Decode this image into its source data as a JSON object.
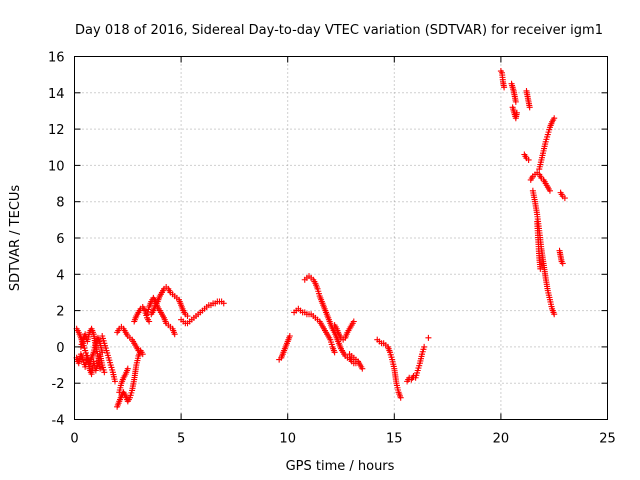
{
  "chart_data": {
    "type": "scatter",
    "title": "Day 018 of 2016, Sidereal Day-to-day VTEC variation (SDTVAR) for receiver igm1",
    "xlabel": "GPS time / hours",
    "ylabel": "SDTVAR / TECUs",
    "xlim": [
      0,
      25
    ],
    "ylim": [
      -4,
      16
    ],
    "xticks": [
      "0",
      "5",
      "10",
      "15",
      "20",
      "25"
    ],
    "yticks": [
      "-4",
      "-2",
      "0",
      "2",
      "4",
      "6",
      "8",
      "10",
      "12",
      "14",
      "16"
    ],
    "grid": true,
    "marker": "plus",
    "color": "#ff0000",
    "arcs": [
      [
        [
          0.1,
          1.0
        ],
        [
          0.2,
          0.8
        ],
        [
          0.3,
          0.5
        ],
        [
          0.4,
          0.2
        ],
        [
          0.5,
          -0.2
        ],
        [
          0.6,
          -0.6
        ],
        [
          0.7,
          -0.9
        ],
        [
          0.8,
          -0.6
        ],
        [
          0.9,
          -0.3
        ],
        [
          1.0,
          0.2
        ],
        [
          1.1,
          0.5
        ],
        [
          1.2,
          0.2
        ],
        [
          1.3,
          -0.3
        ]
      ],
      [
        [
          0.1,
          -0.6
        ],
        [
          0.2,
          -0.9
        ],
        [
          0.3,
          -0.4
        ],
        [
          0.4,
          -0.7
        ],
        [
          0.5,
          -1.1
        ],
        [
          0.6,
          -0.5
        ],
        [
          0.7,
          -1.2
        ],
        [
          0.8,
          -1.5
        ],
        [
          0.9,
          -0.8
        ],
        [
          1.0,
          -1.3
        ],
        [
          1.1,
          -0.9
        ],
        [
          1.2,
          -0.4
        ],
        [
          1.3,
          -1.0
        ],
        [
          1.4,
          -1.4
        ]
      ],
      [
        [
          0.3,
          0.0
        ],
        [
          0.4,
          0.4
        ],
        [
          0.5,
          0.7
        ],
        [
          0.6,
          0.3
        ],
        [
          0.7,
          0.8
        ],
        [
          0.8,
          1.0
        ],
        [
          0.9,
          0.7
        ],
        [
          1.0,
          0.0
        ],
        [
          1.1,
          -0.5
        ],
        [
          1.2,
          -1.2
        ]
      ],
      [
        [
          1.3,
          0.6
        ],
        [
          1.4,
          0.2
        ],
        [
          1.5,
          -0.2
        ],
        [
          1.6,
          -0.6
        ],
        [
          1.7,
          -1.0
        ],
        [
          1.8,
          -1.4
        ],
        [
          1.9,
          -1.9
        ]
      ],
      [
        [
          2.0,
          -3.3
        ],
        [
          2.1,
          -3.0
        ],
        [
          2.2,
          -2.7
        ],
        [
          2.3,
          -2.5
        ],
        [
          2.4,
          -2.7
        ],
        [
          2.5,
          -3.0
        ],
        [
          2.6,
          -2.8
        ],
        [
          2.7,
          -2.4
        ],
        [
          2.8,
          -1.8
        ],
        [
          2.9,
          -1.0
        ],
        [
          3.0,
          -0.5
        ],
        [
          3.1,
          -0.2
        ],
        [
          3.2,
          -0.4
        ]
      ],
      [
        [
          2.1,
          -2.5
        ],
        [
          2.2,
          -2.0
        ],
        [
          2.3,
          -1.7
        ],
        [
          2.4,
          -1.5
        ],
        [
          2.5,
          -1.2
        ]
      ],
      [
        [
          2.0,
          0.8
        ],
        [
          2.1,
          1.0
        ],
        [
          2.2,
          1.1
        ],
        [
          2.3,
          1.0
        ],
        [
          2.4,
          0.8
        ],
        [
          2.5,
          0.6
        ],
        [
          2.6,
          0.5
        ],
        [
          2.7,
          0.4
        ],
        [
          2.8,
          0.2
        ],
        [
          2.9,
          0.0
        ],
        [
          3.0,
          -0.2
        ]
      ],
      [
        [
          2.8,
          1.4
        ],
        [
          2.9,
          1.7
        ],
        [
          3.0,
          1.9
        ],
        [
          3.1,
          2.1
        ],
        [
          3.2,
          2.2
        ],
        [
          3.3,
          2.0
        ],
        [
          3.4,
          1.6
        ],
        [
          3.5,
          1.4
        ]
      ],
      [
        [
          3.4,
          1.8
        ],
        [
          3.5,
          2.2
        ],
        [
          3.6,
          2.5
        ],
        [
          3.7,
          2.7
        ],
        [
          3.8,
          2.5
        ],
        [
          3.9,
          2.2
        ],
        [
          4.0,
          2.0
        ],
        [
          4.1,
          1.8
        ],
        [
          4.2,
          1.6
        ],
        [
          4.3,
          1.3
        ],
        [
          4.4,
          1.2
        ],
        [
          4.5,
          1.1
        ],
        [
          4.6,
          1.0
        ],
        [
          4.7,
          0.7
        ]
      ],
      [
        [
          3.6,
          1.8
        ],
        [
          3.7,
          2.0
        ],
        [
          3.8,
          2.3
        ],
        [
          3.9,
          2.5
        ],
        [
          4.0,
          2.8
        ],
        [
          4.1,
          3.0
        ],
        [
          4.2,
          3.2
        ],
        [
          4.3,
          3.3
        ],
        [
          4.4,
          3.2
        ],
        [
          4.5,
          3.0
        ],
        [
          4.6,
          2.9
        ],
        [
          4.7,
          2.8
        ],
        [
          4.8,
          2.7
        ],
        [
          4.9,
          2.6
        ],
        [
          5.0,
          2.3
        ],
        [
          5.1,
          2.0
        ],
        [
          5.2,
          1.8
        ],
        [
          5.3,
          1.7
        ]
      ],
      [
        [
          5.0,
          1.5
        ],
        [
          5.1,
          1.4
        ],
        [
          5.2,
          1.3
        ],
        [
          5.3,
          1.3
        ],
        [
          5.4,
          1.4
        ],
        [
          5.5,
          1.5
        ],
        [
          5.6,
          1.6
        ],
        [
          5.7,
          1.7
        ],
        [
          5.8,
          1.8
        ],
        [
          5.9,
          1.9
        ],
        [
          6.0,
          2.0
        ],
        [
          6.1,
          2.1
        ],
        [
          6.2,
          2.2
        ],
        [
          6.3,
          2.3
        ],
        [
          6.4,
          2.3
        ],
        [
          6.5,
          2.4
        ],
        [
          6.6,
          2.4
        ],
        [
          6.7,
          2.5
        ],
        [
          6.8,
          2.5
        ],
        [
          6.9,
          2.5
        ],
        [
          7.0,
          2.4
        ]
      ],
      [
        [
          9.6,
          -0.7
        ],
        [
          9.7,
          -0.6
        ],
        [
          9.8,
          -0.3
        ],
        [
          9.9,
          0.0
        ],
        [
          10.0,
          0.3
        ],
        [
          10.1,
          0.6
        ]
      ],
      [
        [
          10.3,
          1.9
        ],
        [
          10.4,
          2.0
        ],
        [
          10.5,
          2.1
        ],
        [
          10.6,
          2.0
        ],
        [
          10.7,
          1.9
        ],
        [
          10.8,
          1.9
        ],
        [
          10.9,
          1.8
        ],
        [
          11.0,
          1.8
        ],
        [
          11.1,
          1.8
        ],
        [
          11.2,
          1.7
        ],
        [
          11.3,
          1.6
        ],
        [
          11.4,
          1.5
        ],
        [
          11.5,
          1.4
        ],
        [
          11.6,
          1.2
        ],
        [
          11.7,
          1.0
        ],
        [
          11.8,
          0.8
        ],
        [
          11.9,
          0.6
        ],
        [
          12.0,
          0.4
        ],
        [
          12.1,
          0.0
        ],
        [
          12.2,
          -0.3
        ]
      ],
      [
        [
          10.8,
          3.7
        ],
        [
          10.9,
          3.8
        ],
        [
          11.0,
          3.9
        ],
        [
          11.1,
          3.8
        ],
        [
          11.2,
          3.7
        ],
        [
          11.3,
          3.5
        ],
        [
          11.4,
          3.2
        ],
        [
          11.5,
          2.8
        ],
        [
          11.6,
          2.5
        ],
        [
          11.7,
          2.2
        ],
        [
          11.8,
          1.9
        ],
        [
          11.9,
          1.6
        ],
        [
          12.0,
          1.3
        ],
        [
          12.1,
          1.0
        ],
        [
          12.2,
          0.8
        ],
        [
          12.3,
          0.5
        ],
        [
          12.4,
          0.2
        ],
        [
          12.5,
          -0.1
        ],
        [
          12.6,
          -0.3
        ],
        [
          12.7,
          -0.5
        ],
        [
          12.8,
          -0.6
        ],
        [
          12.9,
          -0.6
        ],
        [
          13.0,
          -0.8
        ],
        [
          13.1,
          -0.9
        ],
        [
          13.2,
          -0.9
        ]
      ],
      [
        [
          12.2,
          1.2
        ],
        [
          12.3,
          1.0
        ],
        [
          12.4,
          0.7
        ],
        [
          12.5,
          0.5
        ],
        [
          12.6,
          0.4
        ],
        [
          12.7,
          0.5
        ],
        [
          12.8,
          0.8
        ],
        [
          12.9,
          1.0
        ],
        [
          13.0,
          1.2
        ],
        [
          13.1,
          1.4
        ]
      ],
      [
        [
          12.9,
          -0.4
        ],
        [
          13.0,
          -0.5
        ],
        [
          13.1,
          -0.6
        ],
        [
          13.2,
          -0.7
        ],
        [
          13.3,
          -0.8
        ],
        [
          13.4,
          -1.0
        ],
        [
          13.5,
          -1.2
        ]
      ],
      [
        [
          14.2,
          0.4
        ],
        [
          14.3,
          0.3
        ],
        [
          14.4,
          0.2
        ],
        [
          14.5,
          0.2
        ],
        [
          14.6,
          0.1
        ],
        [
          14.7,
          0.0
        ],
        [
          14.8,
          -0.3
        ],
        [
          14.9,
          -0.7
        ],
        [
          15.0,
          -1.2
        ],
        [
          15.1,
          -2.0
        ],
        [
          15.2,
          -2.5
        ],
        [
          15.3,
          -2.8
        ]
      ],
      [
        [
          15.6,
          -1.9
        ],
        [
          15.7,
          -1.7
        ],
        [
          15.8,
          -1.8
        ],
        [
          15.9,
          -1.6
        ],
        [
          16.0,
          -1.7
        ],
        [
          16.1,
          -1.3
        ],
        [
          16.2,
          -0.9
        ],
        [
          16.3,
          -0.4
        ],
        [
          16.4,
          0.0
        ]
      ],
      [
        [
          16.6,
          0.5
        ]
      ],
      [
        [
          20.0,
          15.2
        ],
        [
          20.05,
          15.1
        ],
        [
          20.1,
          14.6
        ],
        [
          20.15,
          14.3
        ]
      ],
      [
        [
          20.5,
          14.5
        ],
        [
          20.55,
          14.3
        ],
        [
          20.6,
          14.1
        ],
        [
          20.65,
          13.8
        ],
        [
          20.7,
          13.5
        ]
      ],
      [
        [
          20.55,
          13.2
        ],
        [
          20.6,
          13.0
        ],
        [
          20.65,
          12.8
        ],
        [
          20.7,
          12.6
        ],
        [
          20.75,
          12.9
        ]
      ],
      [
        [
          21.2,
          14.1
        ],
        [
          21.25,
          13.8
        ],
        [
          21.3,
          13.5
        ],
        [
          21.35,
          13.2
        ]
      ],
      [
        [
          21.1,
          10.6
        ],
        [
          21.2,
          10.4
        ],
        [
          21.3,
          10.3
        ]
      ],
      [
        [
          21.4,
          9.2
        ],
        [
          21.5,
          9.4
        ],
        [
          21.6,
          9.5
        ],
        [
          21.7,
          9.6
        ],
        [
          21.8,
          9.5
        ],
        [
          21.9,
          9.3
        ],
        [
          22.0,
          9.2
        ],
        [
          22.1,
          9.0
        ],
        [
          22.2,
          8.8
        ],
        [
          22.3,
          8.6
        ]
      ],
      [
        [
          21.5,
          8.6
        ],
        [
          21.6,
          8.0
        ],
        [
          21.7,
          7.3
        ],
        [
          21.8,
          6.4
        ],
        [
          21.9,
          5.4
        ],
        [
          22.0,
          4.6
        ],
        [
          22.1,
          3.8
        ],
        [
          22.2,
          3.1
        ],
        [
          22.3,
          2.6
        ],
        [
          22.4,
          2.1
        ],
        [
          22.5,
          1.8
        ]
      ],
      [
        [
          21.8,
          9.8
        ],
        [
          21.9,
          10.3
        ],
        [
          22.0,
          10.8
        ],
        [
          22.1,
          11.3
        ],
        [
          22.2,
          11.7
        ],
        [
          22.3,
          12.1
        ],
        [
          22.4,
          12.4
        ],
        [
          22.5,
          12.6
        ]
      ],
      [
        [
          21.7,
          6.9
        ],
        [
          21.75,
          5.9
        ],
        [
          21.8,
          4.9
        ],
        [
          21.85,
          4.3
        ]
      ],
      [
        [
          22.8,
          8.5
        ],
        [
          22.9,
          8.3
        ],
        [
          23.0,
          8.2
        ]
      ],
      [
        [
          22.75,
          5.3
        ],
        [
          22.8,
          5.0
        ],
        [
          22.85,
          4.7
        ],
        [
          22.9,
          4.6
        ]
      ]
    ]
  }
}
